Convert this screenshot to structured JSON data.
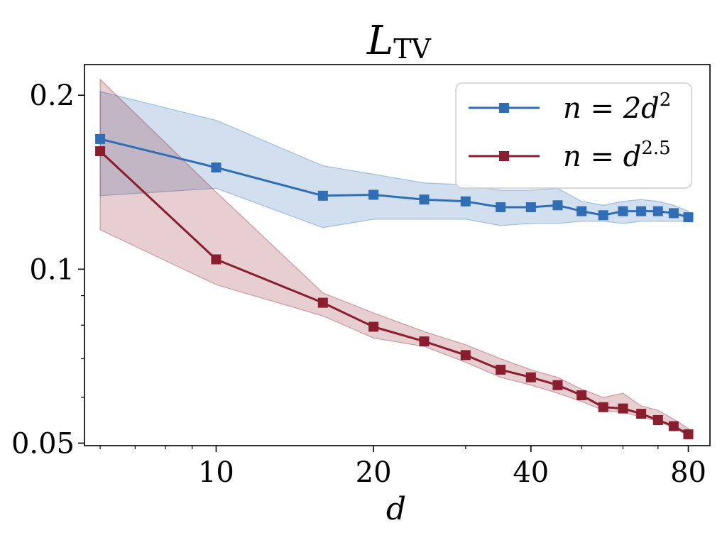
{
  "chart_data": {
    "type": "line",
    "title": "L",
    "title_subscript": "TV",
    "xlabel": "d",
    "ylabel": "",
    "xscale": "log",
    "yscale": "log",
    "xlim": [
      5.6,
      88
    ],
    "ylim": [
      0.0495,
      0.226
    ],
    "xticks": [
      {
        "value": 10,
        "label": "10"
      },
      {
        "value": 20,
        "label": "20"
      },
      {
        "value": 40,
        "label": "40"
      },
      {
        "value": 80,
        "label": "80"
      }
    ],
    "yticks": [
      {
        "value": 0.05,
        "label": "0.05"
      },
      {
        "value": 0.1,
        "label": "0.1"
      },
      {
        "value": 0.2,
        "label": "0.2"
      }
    ],
    "x": [
      6,
      10,
      16,
      20,
      25,
      30,
      35,
      40,
      45,
      50,
      55,
      60,
      65,
      70,
      75,
      80
    ],
    "series": [
      {
        "name": "n = 2d^2",
        "legend_main": "n = 2d",
        "legend_sup": "2",
        "color": "#2f6db5",
        "values": [
          0.168,
          0.15,
          0.134,
          0.1345,
          0.132,
          0.131,
          0.128,
          0.128,
          0.129,
          0.126,
          0.124,
          0.126,
          0.126,
          0.126,
          0.125,
          0.123
        ],
        "upper": [
          0.203,
          0.181,
          0.151,
          0.146,
          0.141,
          0.14,
          0.137,
          0.137,
          0.138,
          0.131,
          0.129,
          0.131,
          0.132,
          0.131,
          0.129,
          0.126
        ],
        "lower": [
          0.134,
          0.138,
          0.118,
          0.122,
          0.122,
          0.122,
          0.119,
          0.12,
          0.12,
          0.121,
          0.121,
          0.12,
          0.121,
          0.121,
          0.121,
          0.121
        ]
      },
      {
        "name": "n = d^2.5",
        "legend_main": "n = d",
        "legend_sup": "2.5",
        "color": "#8b1e2e",
        "values": [
          0.16,
          0.104,
          0.0875,
          0.0795,
          0.075,
          0.071,
          0.067,
          0.065,
          0.063,
          0.0605,
          0.0577,
          0.0574,
          0.0562,
          0.0548,
          0.0535,
          0.0518
        ],
        "upper": [
          0.213,
          0.136,
          0.091,
          0.084,
          0.078,
          0.074,
          0.07,
          0.067,
          0.065,
          0.062,
          0.06,
          0.061,
          0.058,
          0.057,
          0.055,
          0.053
        ],
        "lower": [
          0.117,
          0.094,
          0.083,
          0.076,
          0.0735,
          0.069,
          0.065,
          0.063,
          0.061,
          0.059,
          0.057,
          0.0565,
          0.0555,
          0.0545,
          0.0532,
          0.0514
        ]
      }
    ],
    "legend_position": "top-right",
    "grid": false
  }
}
